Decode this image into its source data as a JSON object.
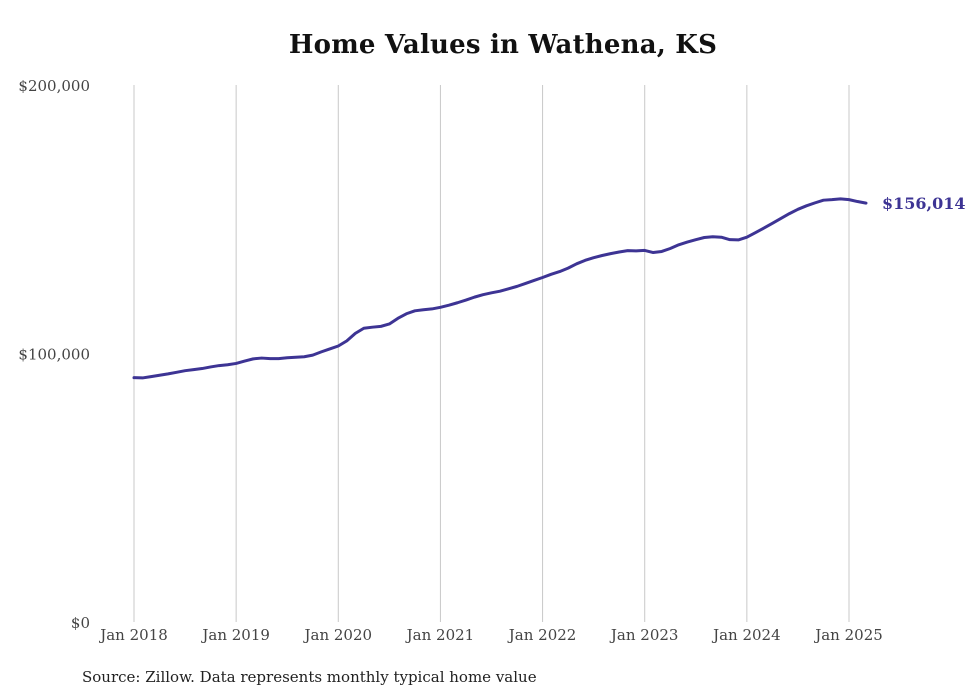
{
  "chart_data": {
    "type": "line",
    "title": "Home Values in Wathena, KS",
    "source": "Source: Zillow. Data represents monthly typical home value",
    "xlabel": "",
    "ylabel": "",
    "ylim": [
      0,
      200000
    ],
    "y_ticks": [
      {
        "value": 0,
        "label": "$0"
      },
      {
        "value": 100000,
        "label": "$100,000"
      },
      {
        "value": 200000,
        "label": "$200,000"
      }
    ],
    "x_ticks": [
      {
        "date": "2018-01",
        "label": "Jan 2018"
      },
      {
        "date": "2019-01",
        "label": "Jan 2019"
      },
      {
        "date": "2020-01",
        "label": "Jan 2020"
      },
      {
        "date": "2021-01",
        "label": "Jan 2021"
      },
      {
        "date": "2022-01",
        "label": "Jan 2022"
      },
      {
        "date": "2023-01",
        "label": "Jan 2023"
      },
      {
        "date": "2024-01",
        "label": "Jan 2024"
      },
      {
        "date": "2025-01",
        "label": "Jan 2025"
      }
    ],
    "grid": "vertical",
    "line_color": "#3d3494",
    "end_label": "$156,014",
    "series": [
      {
        "x": [
          "2018-01",
          "2018-02",
          "2018-03",
          "2018-04",
          "2018-05",
          "2018-06",
          "2018-07",
          "2018-08",
          "2018-09",
          "2018-10",
          "2018-11",
          "2018-12",
          "2019-01",
          "2019-02",
          "2019-03",
          "2019-04",
          "2019-05",
          "2019-06",
          "2019-07",
          "2019-08",
          "2019-09",
          "2019-10",
          "2019-11",
          "2019-12",
          "2020-01",
          "2020-02",
          "2020-03",
          "2020-04",
          "2020-05",
          "2020-06",
          "2020-07",
          "2020-08",
          "2020-09",
          "2020-10",
          "2020-11",
          "2020-12",
          "2021-01",
          "2021-02",
          "2021-03",
          "2021-04",
          "2021-05",
          "2021-06",
          "2021-07",
          "2021-08",
          "2021-09",
          "2021-10",
          "2021-11",
          "2021-12",
          "2022-01",
          "2022-02",
          "2022-03",
          "2022-04",
          "2022-05",
          "2022-06",
          "2022-07",
          "2022-08",
          "2022-09",
          "2022-10",
          "2022-11",
          "2022-12",
          "2023-01",
          "2023-02",
          "2023-03",
          "2023-04",
          "2023-05",
          "2023-06",
          "2023-07",
          "2023-08",
          "2023-09",
          "2023-10",
          "2023-11",
          "2023-12",
          "2024-01",
          "2024-02",
          "2024-03",
          "2024-04",
          "2024-05",
          "2024-06",
          "2024-07",
          "2024-08",
          "2024-09",
          "2024-10",
          "2024-11",
          "2024-12",
          "2025-01",
          "2025-02",
          "2025-03",
          "2025-04"
        ],
        "values": [
          91000,
          90900,
          91400,
          91900,
          92400,
          93000,
          93600,
          94000,
          94400,
          95000,
          95500,
          95800,
          96300,
          97200,
          98000,
          98300,
          98100,
          98100,
          98400,
          98600,
          98800,
          99400,
          100600,
          101700,
          102800,
          104700,
          107500,
          109400,
          109800,
          110100,
          111000,
          113100,
          114800,
          115900,
          116300,
          116600,
          117200,
          118000,
          118900,
          119900,
          121000,
          121900,
          122600,
          123200,
          124100,
          125000,
          126100,
          127200,
          128300,
          129500,
          130500,
          131800,
          133400,
          134700,
          135700,
          136500,
          137200,
          137800,
          138300,
          138200,
          138400,
          137600,
          138000,
          139100,
          140500,
          141500,
          142400,
          143200,
          143500,
          143300,
          142400,
          142300,
          143300,
          145000,
          146700,
          148500,
          150300,
          152100,
          153700,
          155000,
          156100,
          157100,
          157300,
          157600,
          157300,
          156600,
          156014,
          null
        ]
      }
    ]
  }
}
